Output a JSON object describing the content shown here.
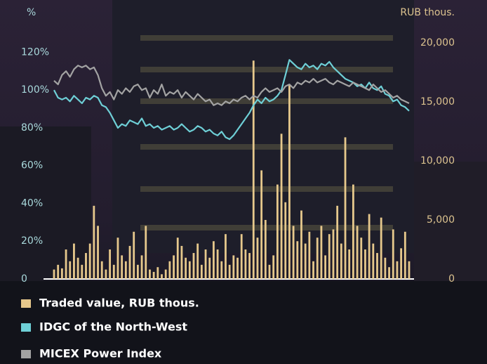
{
  "chart_data": {
    "type": "combo",
    "y_label": "%",
    "y2_label": "RUB thous.",
    "ylim": [
      0,
      125
    ],
    "yticks": [
      0,
      {
        "value": 20,
        "label": "20%"
      },
      {
        "value": 40,
        "label": "40%"
      },
      {
        "value": 60,
        "label": "60%"
      },
      {
        "value": 80,
        "label": "80%"
      },
      {
        "value": 100,
        "label": "100%"
      },
      {
        "value": 120,
        "label": "120%"
      }
    ],
    "y2lim": [
      0,
      20000
    ],
    "y2ticks": [
      0,
      {
        "value": 5000,
        "label": "5,000"
      },
      {
        "value": 10000,
        "label": "10,000"
      },
      {
        "value": 15000,
        "label": "15,000"
      },
      {
        "value": 20000,
        "label": "20,000"
      }
    ],
    "series": [
      {
        "name": "Traded value, RUB thous.",
        "type": "bar",
        "axis": "y2",
        "color": "#e6c88c",
        "values": [
          800,
          1200,
          900,
          2500,
          1500,
          3000,
          1800,
          1200,
          2200,
          3000,
          6200,
          4500,
          1500,
          800,
          2500,
          1200,
          3500,
          2000,
          1500,
          2800,
          4000,
          1200,
          2000,
          4500,
          800,
          600,
          1000,
          400,
          800,
          1500,
          2000,
          3500,
          2800,
          1800,
          1500,
          2200,
          3000,
          1200,
          2500,
          1800,
          3200,
          2500,
          1500,
          3800,
          1200,
          2000,
          1800,
          3800,
          2500,
          2200,
          18500,
          3500,
          9200,
          5000,
          1200,
          2000,
          8000,
          12300,
          6500,
          16500,
          4500,
          3200,
          5800,
          3000,
          4000,
          1500,
          3500,
          4500,
          2000,
          3800,
          4200,
          6200,
          3000,
          12000,
          2500,
          8000,
          4500,
          3500,
          2500,
          5500,
          3000,
          2200,
          5200,
          1800,
          1000,
          4200,
          1500,
          2600,
          4000,
          1500
        ]
      },
      {
        "name": "IDGC of the North-West",
        "type": "line",
        "color": "#6ecfd6",
        "values": [
          100,
          96,
          95,
          96,
          94,
          97,
          95,
          93,
          96,
          95,
          97,
          96,
          92,
          91,
          88,
          84,
          80,
          82,
          81,
          84,
          83,
          82,
          85,
          81,
          82,
          80,
          81,
          79,
          80,
          81,
          79,
          80,
          82,
          80,
          78,
          79,
          81,
          80,
          78,
          79,
          77,
          76,
          78,
          75,
          74,
          76,
          79,
          82,
          85,
          88,
          92,
          95,
          93,
          96,
          94,
          95,
          97,
          100,
          108,
          116,
          114,
          112,
          111,
          114,
          112,
          113,
          111,
          114,
          113,
          115,
          112,
          110,
          108,
          106,
          105,
          104,
          102,
          103,
          101,
          104,
          101,
          100,
          102,
          98,
          97,
          94,
          95,
          92,
          91,
          89
        ]
      },
      {
        "name": "MICEX Power Index",
        "type": "line",
        "color": "#a3a3a3",
        "values": [
          105,
          103,
          108,
          110,
          107,
          111,
          113,
          112,
          113,
          111,
          112,
          108,
          101,
          97,
          99,
          95,
          100,
          98,
          101,
          99,
          102,
          103,
          100,
          101,
          96,
          100,
          98,
          103,
          97,
          99,
          98,
          100,
          96,
          99,
          97,
          95,
          98,
          96,
          94,
          95,
          92,
          93,
          92,
          94,
          93,
          95,
          94,
          96,
          97,
          95,
          97,
          96,
          99,
          101,
          99,
          100,
          101,
          99,
          102,
          103,
          101,
          104,
          103,
          105,
          104,
          106,
          104,
          105,
          106,
          104,
          103,
          105,
          104,
          103,
          102,
          104,
          103,
          102,
          101,
          100,
          103,
          101,
          99,
          100,
          98,
          96,
          97,
          95,
          94,
          93
        ]
      }
    ]
  }
}
